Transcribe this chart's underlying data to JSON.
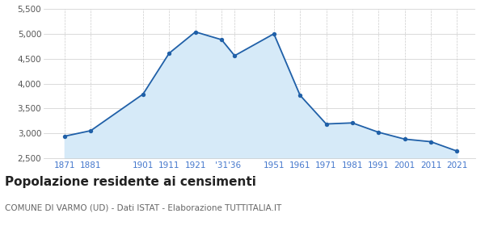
{
  "years": [
    1871,
    1881,
    1901,
    1911,
    1921,
    1931,
    1936,
    1951,
    1961,
    1971,
    1981,
    1991,
    2001,
    2011,
    2021
  ],
  "population": [
    2942,
    3054,
    3789,
    4613,
    5040,
    4884,
    4562,
    5002,
    3766,
    3189,
    3210,
    3022,
    2884,
    2832,
    2643
  ],
  "ylim": [
    2500,
    5500
  ],
  "yticks": [
    2500,
    3000,
    3500,
    4000,
    4500,
    5000,
    5500
  ],
  "xlim_left": 1863,
  "xlim_right": 2028,
  "line_color": "#2060a8",
  "fill_color": "#d6eaf8",
  "marker_color": "#2060a8",
  "grid_color": "#cccccc",
  "background_color": "#ffffff",
  "title": "Popolazione residente ai censimenti",
  "subtitle": "COMUNE DI VARMO (UD) - Dati ISTAT - Elaborazione TUTTITALIA.IT",
  "title_fontsize": 11,
  "subtitle_fontsize": 7.5,
  "ytick_color": "#555555",
  "xtick_color": "#4477cc",
  "tick_fontsize": 7.5,
  "x_tick_positions": [
    1871,
    1881,
    1901,
    1911,
    1921,
    1931,
    1936,
    1951,
    1961,
    1971,
    1981,
    1991,
    2001,
    2011,
    2021
  ],
  "x_tick_labels": [
    "1871",
    "1881",
    "1901",
    "1911",
    "1921",
    "'31",
    "'36",
    "1951",
    "1961",
    "1971",
    "1981",
    "1991",
    "2001",
    "2011",
    "2021"
  ]
}
